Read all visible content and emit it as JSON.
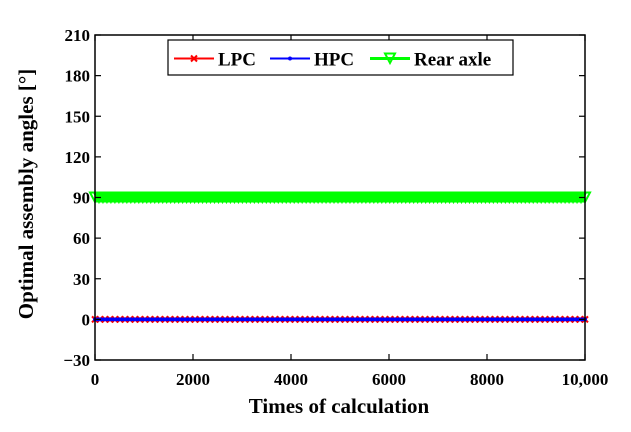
{
  "chart_data": {
    "type": "line",
    "title": "",
    "xlabel": "Times of calculation",
    "ylabel": "Optimal assembly angles [°]",
    "xlim": [
      0,
      10000
    ],
    "ylim": [
      -30,
      210
    ],
    "xticks": [
      0,
      2000,
      4000,
      6000,
      8000,
      10000
    ],
    "xtick_labels": [
      "0",
      "2000",
      "4000",
      "6000",
      "8000",
      "10,000"
    ],
    "yticks": [
      -30,
      0,
      30,
      60,
      90,
      120,
      150,
      180,
      210
    ],
    "ytick_labels": [
      "−30",
      "0",
      "30",
      "60",
      "90",
      "120",
      "150",
      "180",
      "210"
    ],
    "grid": false,
    "legend_position": "top-center",
    "series": [
      {
        "name": "LPC",
        "color": "#ff0000",
        "marker": "x-mark",
        "x": [
          0,
          10000
        ],
        "y": [
          0,
          0
        ]
      },
      {
        "name": "HPC",
        "color": "#0000ff",
        "marker": "dot",
        "x": [
          0,
          10000
        ],
        "y": [
          0,
          0
        ]
      },
      {
        "name": "Rear axle",
        "color": "#00ff00",
        "marker": "triangle-down",
        "x": [
          0,
          10000
        ],
        "y": [
          90,
          90
        ]
      }
    ]
  }
}
